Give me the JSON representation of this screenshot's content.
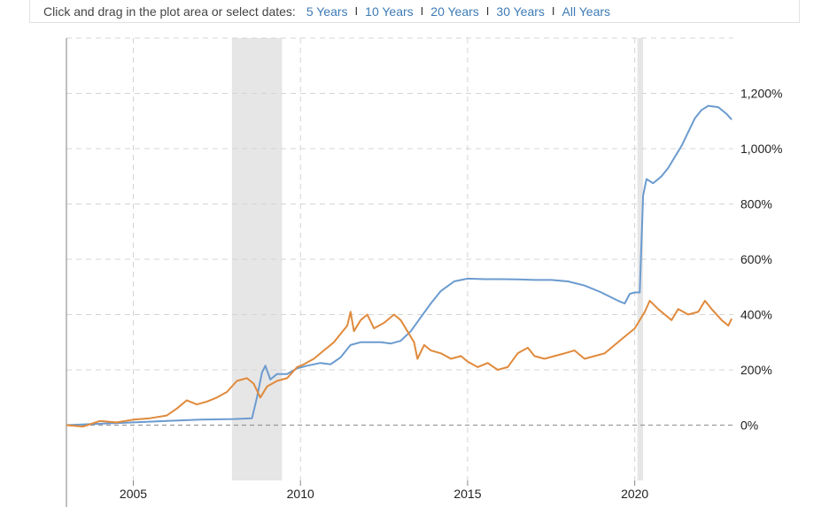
{
  "toolbar": {
    "prompt": "Click and drag in the plot area or select dates:",
    "ranges": [
      "5 Years",
      "10 Years",
      "20 Years",
      "30 Years",
      "All Years"
    ],
    "separator": "I"
  },
  "colors": {
    "series_a": "#6b9bcf",
    "series_b": "#e08a3c",
    "recession": "#e6e6e6",
    "link": "#3e7bb6"
  },
  "chart_data": {
    "type": "line",
    "xlim": [
      2003.0,
      2022.95
    ],
    "ylim": [
      -200,
      1400
    ],
    "y_ticks": [
      0,
      200,
      400,
      600,
      800,
      1000,
      1200
    ],
    "y_tick_labels": [
      "0%",
      "200%",
      "400%",
      "600%",
      "800%",
      "1,000%",
      "1,200%"
    ],
    "x_ticks": [
      2005,
      2010,
      2015,
      2020
    ],
    "x_tick_labels": [
      "2005",
      "2010",
      "2015",
      "2020"
    ],
    "y_axis_side": "right",
    "grid": true,
    "recessions": [
      [
        2007.95,
        2009.45
      ],
      [
        2020.08,
        2020.25
      ]
    ],
    "series": [
      {
        "values": [
          [
            2003.0,
            0
          ],
          [
            2004.0,
            5
          ],
          [
            2005.0,
            10
          ],
          [
            2006.0,
            15
          ],
          [
            2007.0,
            20
          ],
          [
            2008.0,
            22
          ],
          [
            2008.55,
            25
          ],
          [
            2008.7,
            100
          ],
          [
            2008.85,
            190
          ],
          [
            2008.95,
            215
          ],
          [
            2009.1,
            165
          ],
          [
            2009.3,
            185
          ],
          [
            2009.6,
            185
          ],
          [
            2009.9,
            205
          ],
          [
            2010.2,
            215
          ],
          [
            2010.6,
            225
          ],
          [
            2010.9,
            220
          ],
          [
            2011.2,
            245
          ],
          [
            2011.5,
            290
          ],
          [
            2011.8,
            300
          ],
          [
            2012.1,
            300
          ],
          [
            2012.4,
            300
          ],
          [
            2012.7,
            295
          ],
          [
            2013.0,
            305
          ],
          [
            2013.3,
            340
          ],
          [
            2013.6,
            390
          ],
          [
            2013.9,
            440
          ],
          [
            2014.2,
            485
          ],
          [
            2014.6,
            520
          ],
          [
            2015.0,
            530
          ],
          [
            2015.5,
            528
          ],
          [
            2016.0,
            528
          ],
          [
            2016.5,
            527
          ],
          [
            2017.0,
            525
          ],
          [
            2017.5,
            525
          ],
          [
            2018.0,
            520
          ],
          [
            2018.5,
            505
          ],
          [
            2019.0,
            480
          ],
          [
            2019.5,
            450
          ],
          [
            2019.7,
            440
          ],
          [
            2019.85,
            475
          ],
          [
            2020.0,
            480
          ],
          [
            2020.15,
            480
          ],
          [
            2020.25,
            830
          ],
          [
            2020.35,
            890
          ],
          [
            2020.55,
            875
          ],
          [
            2020.8,
            900
          ],
          [
            2021.0,
            930
          ],
          [
            2021.2,
            970
          ],
          [
            2021.4,
            1010
          ],
          [
            2021.6,
            1060
          ],
          [
            2021.8,
            1110
          ],
          [
            2022.0,
            1140
          ],
          [
            2022.2,
            1155
          ],
          [
            2022.5,
            1150
          ],
          [
            2022.75,
            1125
          ],
          [
            2022.9,
            1105
          ]
        ]
      },
      {
        "values": [
          [
            2003.0,
            0
          ],
          [
            2003.5,
            -5
          ],
          [
            2004.0,
            15
          ],
          [
            2004.5,
            10
          ],
          [
            2005.0,
            20
          ],
          [
            2005.5,
            25
          ],
          [
            2006.0,
            35
          ],
          [
            2006.3,
            60
          ],
          [
            2006.6,
            90
          ],
          [
            2006.9,
            75
          ],
          [
            2007.2,
            85
          ],
          [
            2007.5,
            100
          ],
          [
            2007.8,
            120
          ],
          [
            2008.1,
            160
          ],
          [
            2008.4,
            170
          ],
          [
            2008.6,
            150
          ],
          [
            2008.8,
            100
          ],
          [
            2009.0,
            140
          ],
          [
            2009.3,
            160
          ],
          [
            2009.6,
            170
          ],
          [
            2009.9,
            210
          ],
          [
            2010.1,
            220
          ],
          [
            2010.4,
            240
          ],
          [
            2010.7,
            270
          ],
          [
            2011.0,
            300
          ],
          [
            2011.2,
            330
          ],
          [
            2011.4,
            360
          ],
          [
            2011.5,
            410
          ],
          [
            2011.6,
            340
          ],
          [
            2011.8,
            380
          ],
          [
            2012.0,
            400
          ],
          [
            2012.2,
            350
          ],
          [
            2012.5,
            370
          ],
          [
            2012.8,
            400
          ],
          [
            2013.0,
            380
          ],
          [
            2013.2,
            340
          ],
          [
            2013.4,
            300
          ],
          [
            2013.5,
            240
          ],
          [
            2013.7,
            290
          ],
          [
            2013.9,
            270
          ],
          [
            2014.2,
            260
          ],
          [
            2014.5,
            240
          ],
          [
            2014.8,
            250
          ],
          [
            2015.0,
            230
          ],
          [
            2015.3,
            210
          ],
          [
            2015.6,
            225
          ],
          [
            2015.9,
            200
          ],
          [
            2016.2,
            210
          ],
          [
            2016.5,
            260
          ],
          [
            2016.8,
            280
          ],
          [
            2017.0,
            250
          ],
          [
            2017.3,
            240
          ],
          [
            2017.6,
            250
          ],
          [
            2017.9,
            260
          ],
          [
            2018.2,
            270
          ],
          [
            2018.5,
            240
          ],
          [
            2018.8,
            250
          ],
          [
            2019.1,
            260
          ],
          [
            2019.4,
            290
          ],
          [
            2019.7,
            320
          ],
          [
            2020.0,
            350
          ],
          [
            2020.2,
            390
          ],
          [
            2020.3,
            410
          ],
          [
            2020.45,
            450
          ],
          [
            2020.7,
            420
          ],
          [
            2020.9,
            400
          ],
          [
            2021.1,
            380
          ],
          [
            2021.3,
            420
          ],
          [
            2021.6,
            400
          ],
          [
            2021.9,
            410
          ],
          [
            2022.1,
            450
          ],
          [
            2022.3,
            420
          ],
          [
            2022.6,
            380
          ],
          [
            2022.8,
            360
          ],
          [
            2022.9,
            385
          ]
        ]
      }
    ]
  }
}
